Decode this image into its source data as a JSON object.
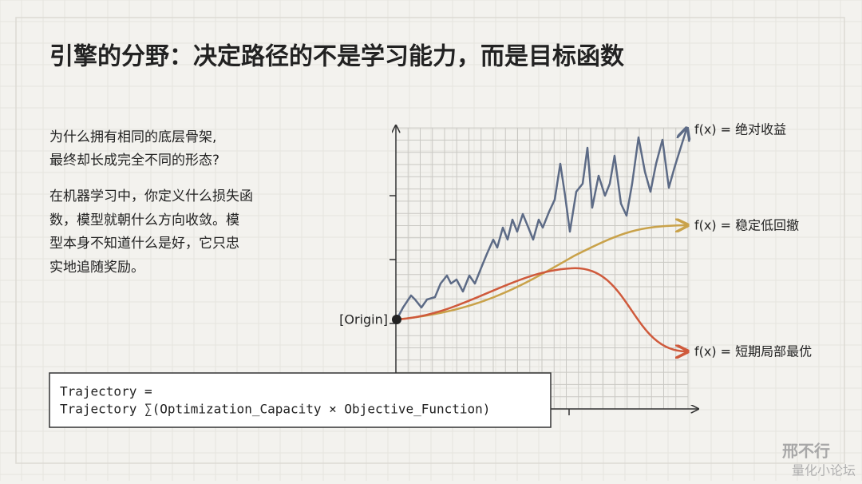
{
  "header": {
    "title": "引擎的分野：决定路径的不是学习能力，而是目标函数"
  },
  "body": {
    "lines": [
      "为什么拥有相同的底层骨架,",
      "最终却长成完全不同的形态?"
    ],
    "paragraph": [
      "在机器学习中，你定义什么损失函",
      "数，模型就朝什么方向收敛。模",
      "型本身不知道什么是好，它只忠",
      "实地追随奖励。"
    ]
  },
  "diagram": {
    "origin": "[Origin]",
    "curves": [
      "f(x) = 绝对收益",
      "f(x) = 稳定低回撤",
      "f(x) = 短期局部最优"
    ]
  },
  "formula": [
    "Trajectory =",
    "Trajectory  ∑(Optimization_Capacity × Objective_Function)"
  ],
  "watermark": [
    "邢不行",
    "量化小论坛"
  ]
}
